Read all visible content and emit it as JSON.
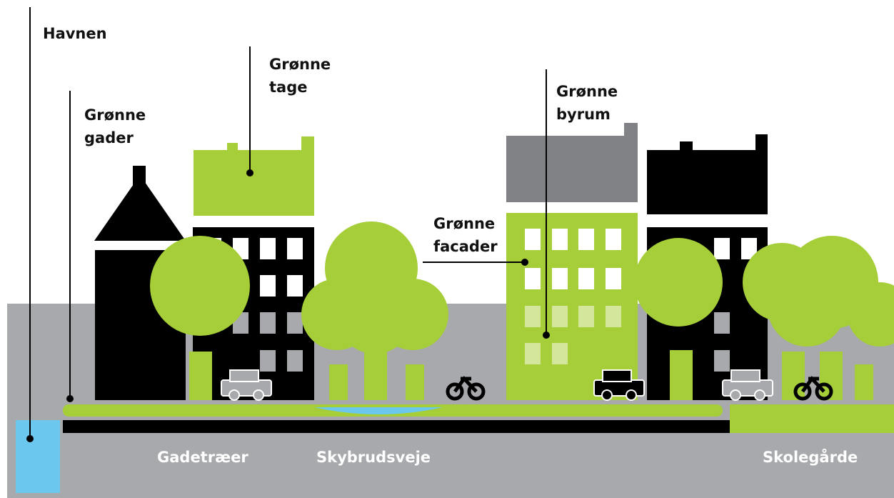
{
  "callouts": [
    {
      "lines": [
        "Havnen"
      ]
    },
    {
      "lines": [
        "Grønne",
        "gader"
      ]
    },
    {
      "lines": [
        "Grønne",
        "tage"
      ]
    },
    {
      "lines": [
        "Grønne",
        "byrum"
      ]
    },
    {
      "lines": [
        "Grønne",
        "facader"
      ]
    }
  ],
  "ground_labels": [
    "Gadetræer",
    "Skybrudsveje",
    "Skolegårde"
  ]
}
